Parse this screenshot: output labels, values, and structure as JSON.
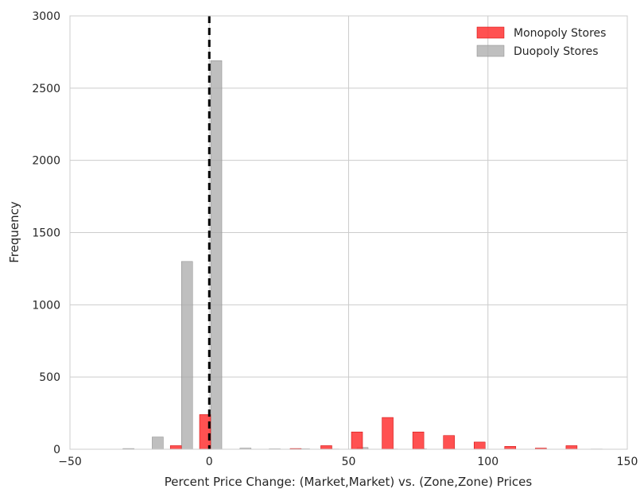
{
  "chart_data": {
    "type": "bar",
    "xlabel": "Percent Price Change: (Market,Market) vs. (Zone,Zone) Prices",
    "ylabel": "Frequency",
    "xlim": [
      -50,
      150
    ],
    "ylim": [
      0,
      3000
    ],
    "x_ticks": [
      "−50",
      "0",
      "50",
      "100",
      "150"
    ],
    "x_tick_values": [
      -50,
      0,
      50,
      100,
      150
    ],
    "y_ticks": [
      "0",
      "500",
      "1000",
      "1500",
      "2000",
      "2500",
      "3000"
    ],
    "y_tick_values": [
      0,
      500,
      1000,
      1500,
      2000,
      2500,
      3000
    ],
    "grid": true,
    "legend_position": "top-right",
    "vline_x": 0,
    "series": [
      {
        "name": "Monopoly Stores",
        "color": "#ff3333",
        "x": [
          -33,
          -22,
          -12,
          -1.5,
          9,
          20,
          31,
          42,
          53,
          64,
          75,
          86,
          97,
          108,
          119,
          130,
          141
        ],
        "values": [
          0,
          0,
          25,
          240,
          0,
          0,
          5,
          25,
          120,
          220,
          120,
          95,
          50,
          20,
          8,
          25,
          0
        ]
      },
      {
        "name": "Duopoly Stores",
        "color": "#aaaaaa",
        "x": [
          -29,
          -18.5,
          -8,
          2.5,
          13,
          23.5,
          34,
          44.5,
          55,
          65.5,
          76,
          86.5,
          97,
          107.5,
          118,
          128.5,
          139
        ],
        "values": [
          5,
          85,
          1300,
          2690,
          8,
          3,
          3,
          2,
          12,
          2,
          3,
          2,
          1,
          1,
          1,
          1,
          2
        ]
      }
    ]
  }
}
